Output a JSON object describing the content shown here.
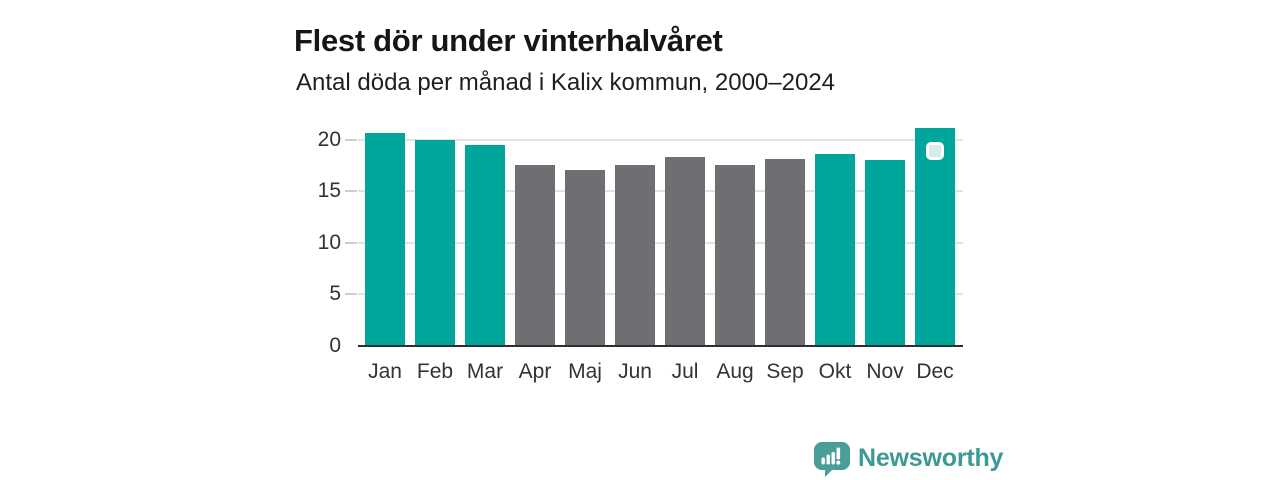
{
  "page": {
    "title": "Flest dör under vinterhalvåret",
    "subtitle": "Antal döda per månad i Kalix kommun, 2000–2024"
  },
  "chart_data": {
    "type": "bar",
    "title": "Flest dör under vinterhalvåret",
    "subtitle": "Antal döda per månad i Kalix kommun, 2000–2024",
    "categories": [
      "Jan",
      "Feb",
      "Mar",
      "Apr",
      "Maj",
      "Jun",
      "Jul",
      "Aug",
      "Sep",
      "Okt",
      "Nov",
      "Dec"
    ],
    "values": [
      20.6,
      20.0,
      19.5,
      17.5,
      17.1,
      17.5,
      18.3,
      17.5,
      18.1,
      18.6,
      18.0,
      21.1
    ],
    "highlighted_categories": [
      "Jan",
      "Feb",
      "Mar",
      "Okt",
      "Nov",
      "Dec"
    ],
    "y_ticks": [
      0,
      5,
      10,
      15,
      20
    ],
    "ylim": [
      0,
      21.9
    ],
    "grid": true,
    "legend": false,
    "latest_value_marker_category": "Dec",
    "colors": {
      "highlight": "#00a69c",
      "base": "#6e6e73"
    }
  },
  "branding": {
    "logo_text": "Newsworthy",
    "logo_text_color": "#3c9a94",
    "logo_icon": "speech-bubble-bar-chart",
    "logo_icon_color": "#4a9e99"
  }
}
